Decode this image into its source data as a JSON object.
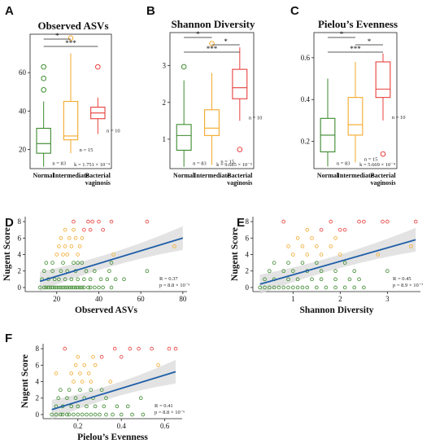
{
  "colors": {
    "normal": "#3c8a2e",
    "intermediate": "#f3a92b",
    "bv": "#e8403c",
    "fit": "#1f5fa8",
    "band": "#d9d9d9"
  },
  "chart_data": [
    {
      "panel": "A",
      "type": "box",
      "title": "Observed ASVs",
      "categories": [
        "Normal",
        "Intermediate",
        "Bacterial\nvaginosis"
      ],
      "ylim": [
        10,
        80
      ],
      "yticks": [
        20,
        40,
        60
      ],
      "boxes": [
        {
          "q1": 18,
          "median": 23,
          "q3": 31,
          "low": 11,
          "high": 45,
          "outliers": [
            51,
            57,
            63
          ],
          "n": "n = 83"
        },
        {
          "q1": 25,
          "median": 27,
          "q3": 45,
          "low": 18,
          "high": 70,
          "outliers": [
            78
          ],
          "n": "n = 15"
        },
        {
          "q1": 36,
          "median": 39,
          "q3": 42,
          "low": 28,
          "high": 47,
          "outliers": [
            63
          ],
          "n": "n = 10"
        }
      ],
      "signif": [
        {
          "from": 0,
          "to": 1,
          "label": "*"
        },
        {
          "from": 0,
          "to": 2,
          "label": "***"
        }
      ],
      "test_note": "k = 1.751 × 10⁻⁴"
    },
    {
      "panel": "B",
      "type": "box",
      "title": "Shannon Diversity",
      "categories": [
        "Normal",
        "Intermediate",
        "Bacterial\nvaginosis"
      ],
      "ylim": [
        0.2,
        3.9
      ],
      "yticks": [
        1,
        2,
        3
      ],
      "boxes": [
        {
          "q1": 0.7,
          "median": 1.1,
          "q3": 1.4,
          "low": 0.25,
          "high": 2.6,
          "outliers": [
            2.97
          ],
          "n": "n = 83"
        },
        {
          "q1": 1.1,
          "median": 1.3,
          "q3": 1.8,
          "low": 0.3,
          "high": 2.8,
          "outliers": [
            3.6
          ],
          "n": "n = 15"
        },
        {
          "q1": 2.1,
          "median": 2.4,
          "q3": 2.9,
          "low": 1.5,
          "high": 3.5,
          "outliers": [
            0.72
          ],
          "n": "n = 10"
        }
      ],
      "signif": [
        {
          "from": 0,
          "to": 1,
          "label": "*"
        },
        {
          "from": 1,
          "to": 2,
          "label": "*"
        },
        {
          "from": 0,
          "to": 2,
          "label": "***"
        }
      ],
      "test_note": "k = 9.685 × 10⁻⁵"
    },
    {
      "panel": "C",
      "type": "box",
      "title": "Pielou’s Evenness",
      "categories": [
        "Normal",
        "Intermediate",
        "Bacterial\nvaginosis"
      ],
      "ylim": [
        0.07,
        0.72
      ],
      "yticks": [
        0.2,
        0.4,
        0.6
      ],
      "boxes": [
        {
          "q1": 0.15,
          "median": 0.23,
          "q3": 0.31,
          "low": 0.08,
          "high": 0.5,
          "outliers": [],
          "n": "n = 83"
        },
        {
          "q1": 0.23,
          "median": 0.28,
          "q3": 0.41,
          "low": 0.1,
          "high": 0.58,
          "outliers": [],
          "n": "n = 15"
        },
        {
          "q1": 0.41,
          "median": 0.45,
          "q3": 0.58,
          "low": 0.3,
          "high": 0.62,
          "outliers": [
            0.14
          ],
          "n": "n = 10"
        }
      ],
      "signif": [
        {
          "from": 0,
          "to": 1,
          "label": "*"
        },
        {
          "from": 1,
          "to": 2,
          "label": "*"
        },
        {
          "from": 0,
          "to": 2,
          "label": "***"
        }
      ],
      "test_note": "k = 5.669 × 10⁻⁴"
    },
    {
      "panel": "D",
      "type": "scatter",
      "xlabel": "Observed ASVs",
      "ylabel": "Nugent Score",
      "xlim": [
        5,
        82
      ],
      "ylim": [
        -0.5,
        8.6
      ],
      "xticks": [
        20,
        40,
        60,
        80
      ],
      "yticks": [
        0,
        2,
        4,
        6,
        8
      ],
      "fit": {
        "x0": 12,
        "y0": 0.75,
        "x1": 80,
        "y1": 6.0,
        "band": 0.9
      },
      "points": [
        [
          12,
          0,
          0
        ],
        [
          14,
          0,
          0
        ],
        [
          15,
          0,
          0
        ],
        [
          16,
          0,
          0
        ],
        [
          17,
          0,
          0
        ],
        [
          18,
          0,
          0
        ],
        [
          19,
          0,
          0
        ],
        [
          20,
          0,
          0
        ],
        [
          21,
          0,
          0
        ],
        [
          22,
          0,
          0
        ],
        [
          23,
          0,
          0
        ],
        [
          24,
          0,
          0
        ],
        [
          25,
          0,
          0
        ],
        [
          26,
          0,
          0
        ],
        [
          27,
          0,
          0
        ],
        [
          28,
          0,
          0
        ],
        [
          29,
          0,
          0
        ],
        [
          30,
          0,
          0
        ],
        [
          31,
          0,
          0
        ],
        [
          32,
          0,
          0
        ],
        [
          33,
          0,
          0
        ],
        [
          35,
          0,
          0
        ],
        [
          36,
          0,
          0
        ],
        [
          38,
          0,
          0
        ],
        [
          40,
          0,
          0
        ],
        [
          42,
          0,
          0
        ],
        [
          46,
          0,
          0
        ],
        [
          13,
          1,
          0
        ],
        [
          16,
          1,
          0
        ],
        [
          19,
          1,
          0
        ],
        [
          21,
          1,
          0
        ],
        [
          24,
          1,
          0
        ],
        [
          27,
          1,
          0
        ],
        [
          30,
          1,
          0
        ],
        [
          33,
          1,
          0
        ],
        [
          36,
          1,
          0
        ],
        [
          41,
          1,
          0
        ],
        [
          44,
          1,
          0
        ],
        [
          48,
          1,
          0
        ],
        [
          52,
          1,
          0
        ],
        [
          14,
          2,
          0
        ],
        [
          18,
          2,
          0
        ],
        [
          22,
          2,
          0
        ],
        [
          25,
          2,
          0
        ],
        [
          29,
          2,
          0
        ],
        [
          34,
          2,
          0
        ],
        [
          38,
          2,
          0
        ],
        [
          45,
          2,
          0
        ],
        [
          63,
          2,
          0
        ],
        [
          15,
          3,
          0
        ],
        [
          18,
          3,
          0
        ],
        [
          23,
          3,
          0
        ],
        [
          28,
          3,
          0
        ],
        [
          30,
          3,
          0
        ],
        [
          32,
          3,
          0
        ],
        [
          46,
          3,
          0
        ],
        [
          20,
          4,
          1
        ],
        [
          23,
          4,
          1
        ],
        [
          25,
          4,
          1
        ],
        [
          30,
          4,
          1
        ],
        [
          47,
          4,
          1
        ],
        [
          21,
          5,
          1
        ],
        [
          24,
          5,
          1
        ],
        [
          27,
          5,
          1
        ],
        [
          31,
          5,
          1
        ],
        [
          76,
          5,
          1
        ],
        [
          22,
          6,
          1
        ],
        [
          26,
          6,
          1
        ],
        [
          29,
          6,
          1
        ],
        [
          32,
          6,
          1
        ],
        [
          24,
          7,
          1
        ],
        [
          28,
          7,
          1
        ],
        [
          33,
          7,
          2
        ],
        [
          36,
          7,
          2
        ],
        [
          42,
          7,
          2
        ],
        [
          28,
          8,
          2
        ],
        [
          35,
          8,
          2
        ],
        [
          37,
          8,
          2
        ],
        [
          40,
          8,
          2
        ],
        [
          46,
          8,
          2
        ],
        [
          63,
          8,
          2
        ]
      ],
      "r_text": "R = 0.37",
      "p_text": "p = 8.8 × 10⁻⁵"
    },
    {
      "panel": "E",
      "type": "scatter",
      "xlabel": "Shannon Diversity",
      "ylabel": "Nugent Score",
      "xlim": [
        0.15,
        3.7
      ],
      "ylim": [
        -0.5,
        8.6
      ],
      "xticks": [
        1,
        2,
        3
      ],
      "yticks": [
        0,
        2,
        4,
        6,
        8
      ],
      "fit": {
        "x0": 0.3,
        "y0": 0.4,
        "x1": 3.6,
        "y1": 5.8,
        "band": 0.9
      },
      "points": [
        [
          0.3,
          0,
          0
        ],
        [
          0.4,
          0,
          0
        ],
        [
          0.5,
          0,
          0
        ],
        [
          0.6,
          0,
          0
        ],
        [
          0.7,
          0,
          0
        ],
        [
          0.8,
          0,
          0
        ],
        [
          0.9,
          0,
          0
        ],
        [
          1.0,
          0,
          0
        ],
        [
          1.1,
          0,
          0
        ],
        [
          1.2,
          0,
          0
        ],
        [
          1.3,
          0,
          0
        ],
        [
          1.5,
          0,
          0
        ],
        [
          1.7,
          0,
          0
        ],
        [
          1.9,
          0,
          0
        ],
        [
          2.1,
          0,
          0
        ],
        [
          2.3,
          0,
          0
        ],
        [
          2.5,
          0,
          0
        ],
        [
          0.4,
          1,
          0
        ],
        [
          0.6,
          1,
          0
        ],
        [
          0.9,
          1,
          0
        ],
        [
          1.1,
          1,
          0
        ],
        [
          1.4,
          1,
          0
        ],
        [
          1.6,
          1,
          0
        ],
        [
          1.9,
          1,
          0
        ],
        [
          2.2,
          1,
          0
        ],
        [
          2.4,
          1,
          0
        ],
        [
          0.5,
          2,
          0
        ],
        [
          0.8,
          2,
          0
        ],
        [
          1.0,
          2,
          0
        ],
        [
          1.3,
          2,
          0
        ],
        [
          1.6,
          2,
          0
        ],
        [
          1.9,
          2,
          0
        ],
        [
          2.3,
          2,
          0
        ],
        [
          3.0,
          2,
          0
        ],
        [
          0.6,
          3,
          0
        ],
        [
          0.9,
          3,
          0
        ],
        [
          1.2,
          3,
          0
        ],
        [
          1.5,
          3,
          0
        ],
        [
          2.1,
          3,
          0
        ],
        [
          1.0,
          4,
          1
        ],
        [
          1.3,
          4,
          1
        ],
        [
          1.6,
          4,
          1
        ],
        [
          2.0,
          4,
          1
        ],
        [
          2.8,
          4,
          1
        ],
        [
          0.9,
          5,
          1
        ],
        [
          1.2,
          5,
          1
        ],
        [
          1.5,
          5,
          1
        ],
        [
          1.8,
          5,
          1
        ],
        [
          3.5,
          5,
          1
        ],
        [
          1.1,
          6,
          1
        ],
        [
          1.4,
          6,
          1
        ],
        [
          1.9,
          6,
          1
        ],
        [
          0.8,
          8,
          2
        ],
        [
          1.3,
          7,
          1
        ],
        [
          1.6,
          7,
          2
        ],
        [
          2.0,
          7,
          2
        ],
        [
          2.1,
          7,
          2
        ],
        [
          1.8,
          8,
          2
        ],
        [
          2.4,
          8,
          2
        ],
        [
          2.5,
          8,
          2
        ],
        [
          2.9,
          8,
          2
        ],
        [
          3.0,
          8,
          2
        ],
        [
          3.6,
          8,
          2
        ]
      ],
      "r_text": "R = 0.45",
      "p_text": "p = 8.9 × 10⁻⁷"
    },
    {
      "panel": "F",
      "type": "scatter",
      "xlabel": "Pielou’s Evenness",
      "ylabel": "Nugent Score",
      "xlim": [
        0.04,
        0.68
      ],
      "ylim": [
        -0.5,
        8.6
      ],
      "xticks": [
        0.2,
        0.4,
        0.6
      ],
      "yticks": [
        0,
        2,
        4,
        6,
        8
      ],
      "fit": {
        "x0": 0.08,
        "y0": 0.6,
        "x1": 0.65,
        "y1": 5.2,
        "band": 0.9
      },
      "points": [
        [
          0.08,
          0,
          0
        ],
        [
          0.1,
          0,
          0
        ],
        [
          0.12,
          0,
          0
        ],
        [
          0.13,
          0,
          0
        ],
        [
          0.15,
          0,
          0
        ],
        [
          0.16,
          0,
          0
        ],
        [
          0.18,
          0,
          0
        ],
        [
          0.2,
          0,
          0
        ],
        [
          0.22,
          0,
          0
        ],
        [
          0.24,
          0,
          0
        ],
        [
          0.26,
          0,
          0
        ],
        [
          0.28,
          0,
          0
        ],
        [
          0.3,
          0,
          0
        ],
        [
          0.33,
          0,
          0
        ],
        [
          0.36,
          0,
          0
        ],
        [
          0.4,
          0,
          0
        ],
        [
          0.45,
          0,
          0
        ],
        [
          0.5,
          0,
          0
        ],
        [
          0.1,
          1,
          0
        ],
        [
          0.13,
          1,
          0
        ],
        [
          0.17,
          1,
          0
        ],
        [
          0.2,
          1,
          0
        ],
        [
          0.24,
          1,
          0
        ],
        [
          0.28,
          1,
          0
        ],
        [
          0.32,
          1,
          0
        ],
        [
          0.38,
          1,
          0
        ],
        [
          0.43,
          1,
          0
        ],
        [
          0.11,
          2,
          0
        ],
        [
          0.15,
          2,
          0
        ],
        [
          0.19,
          2,
          0
        ],
        [
          0.23,
          2,
          0
        ],
        [
          0.27,
          2,
          0
        ],
        [
          0.33,
          2,
          0
        ],
        [
          0.49,
          2,
          0
        ],
        [
          0.12,
          3,
          0
        ],
        [
          0.16,
          3,
          0
        ],
        [
          0.21,
          3,
          0
        ],
        [
          0.26,
          3,
          0
        ],
        [
          0.31,
          3,
          0
        ],
        [
          0.18,
          4,
          1
        ],
        [
          0.22,
          4,
          1
        ],
        [
          0.26,
          4,
          1
        ],
        [
          0.35,
          4,
          1
        ],
        [
          0.1,
          5,
          1
        ],
        [
          0.17,
          5,
          1
        ],
        [
          0.21,
          5,
          1
        ],
        [
          0.25,
          5,
          1
        ],
        [
          0.19,
          6,
          1
        ],
        [
          0.23,
          6,
          1
        ],
        [
          0.28,
          6,
          1
        ],
        [
          0.57,
          6,
          1
        ],
        [
          0.2,
          7,
          1
        ],
        [
          0.27,
          7,
          1
        ],
        [
          0.31,
          7,
          2
        ],
        [
          0.4,
          7,
          2
        ],
        [
          0.14,
          8,
          2
        ],
        [
          0.37,
          8,
          2
        ],
        [
          0.44,
          8,
          2
        ],
        [
          0.48,
          8,
          2
        ],
        [
          0.54,
          8,
          2
        ],
        [
          0.62,
          8,
          2
        ],
        [
          0.65,
          8,
          2
        ]
      ],
      "r_text": "R = 0.41",
      "p_text": "p = 8.8 × 10⁻⁶"
    }
  ]
}
